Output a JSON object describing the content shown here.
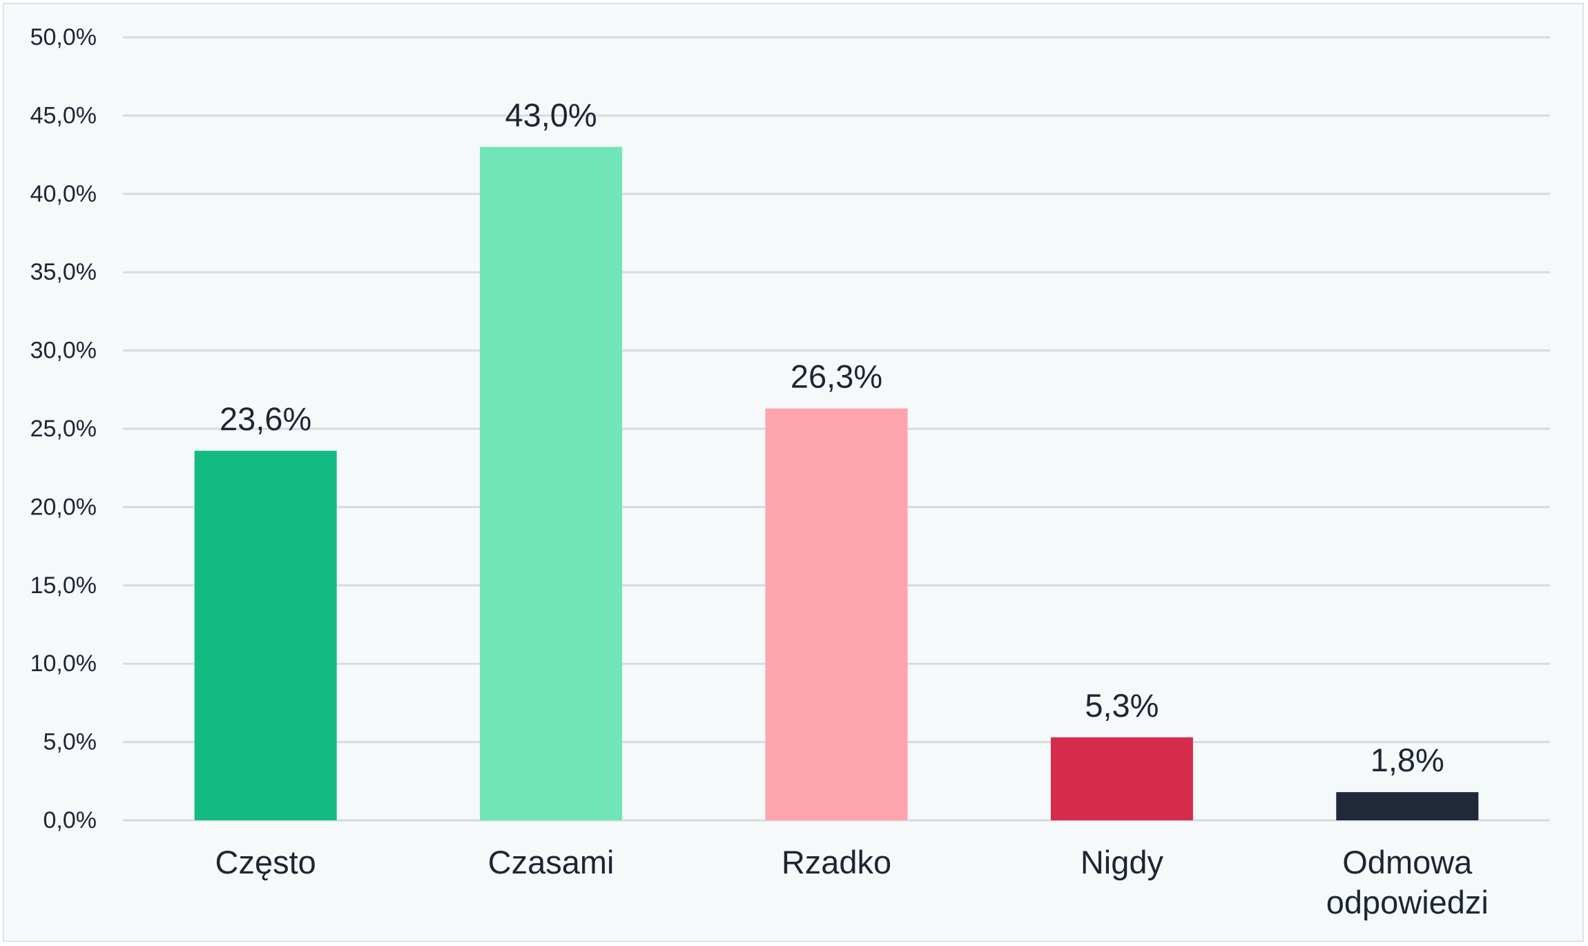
{
  "chart_data": {
    "type": "bar",
    "categories": [
      "Często",
      "Czasami",
      "Rzadko",
      "Nigdy",
      "Odmowa odpowiedzi"
    ],
    "category_lines": [
      [
        "Często"
      ],
      [
        "Czasami"
      ],
      [
        "Rzadko"
      ],
      [
        "Nigdy"
      ],
      [
        "Odmowa",
        "odpowiedzi"
      ]
    ],
    "values": [
      23.6,
      43.0,
      26.3,
      5.3,
      1.8
    ],
    "value_labels": [
      "23,6%",
      "43,0%",
      "26,3%",
      "5,3%",
      "1,8%"
    ],
    "colors": [
      "#13bb82",
      "#70e6b8",
      "#fea4ad",
      "#d52c4c",
      "#1f2939"
    ],
    "ylim": [
      0,
      50
    ],
    "yticks": [
      0,
      5,
      10,
      15,
      20,
      25,
      30,
      35,
      40,
      45,
      50
    ],
    "ytick_labels": [
      "0,0%",
      "5,0%",
      "10,0%",
      "15,0%",
      "20,0%",
      "25,0%",
      "30,0%",
      "35,0%",
      "40,0%",
      "45,0%",
      "50,0%"
    ],
    "grid": true,
    "legend": "none",
    "title": "",
    "xlabel": "",
    "ylabel": ""
  }
}
